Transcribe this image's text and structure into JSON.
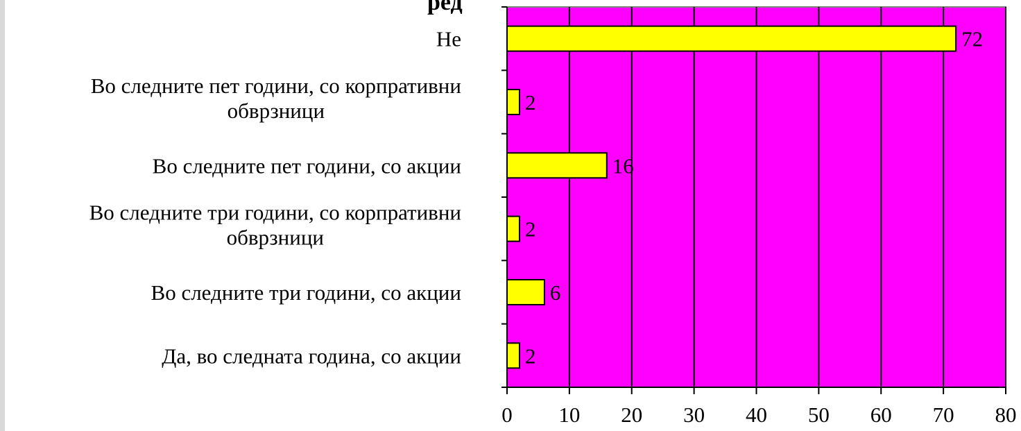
{
  "chart_data": {
    "type": "bar",
    "orientation": "horizontal",
    "title": "ред",
    "categories": [
      "Не",
      "Во следните пет години, со корпративни обврзници",
      "Во следните пет години, со акции",
      "Во следните три години, со корпративни обврзници",
      "Во следните три години, со акции",
      "Да, во следната година, со акции"
    ],
    "category_lines": [
      [
        "Не"
      ],
      [
        "Во следните пет години, со корпративни",
        "обврзници"
      ],
      [
        "Во следните пет години, со акции"
      ],
      [
        "Во следните три години, со корпративни",
        "обврзници"
      ],
      [
        "Во следните три години, со акции"
      ],
      [
        "Да, во следната година, со акции"
      ]
    ],
    "values": [
      72,
      2,
      16,
      2,
      6,
      2
    ],
    "data_labels": [
      "72",
      "2",
      "16",
      "2",
      "6",
      "2"
    ],
    "xlim": [
      0,
      80
    ],
    "xticks": [
      0,
      10,
      20,
      30,
      40,
      50,
      60,
      70,
      80
    ],
    "xtick_labels": [
      "0",
      "10",
      "20",
      "30",
      "40",
      "50",
      "60",
      "70",
      "80"
    ],
    "xlabel": "",
    "ylabel": "",
    "grid": "vertical",
    "legend": "none",
    "colors": {
      "plot_background": "#ff00ff",
      "bar_fill": "#ffff00",
      "bar_stroke": "#000000",
      "gridline": "#000000"
    }
  }
}
